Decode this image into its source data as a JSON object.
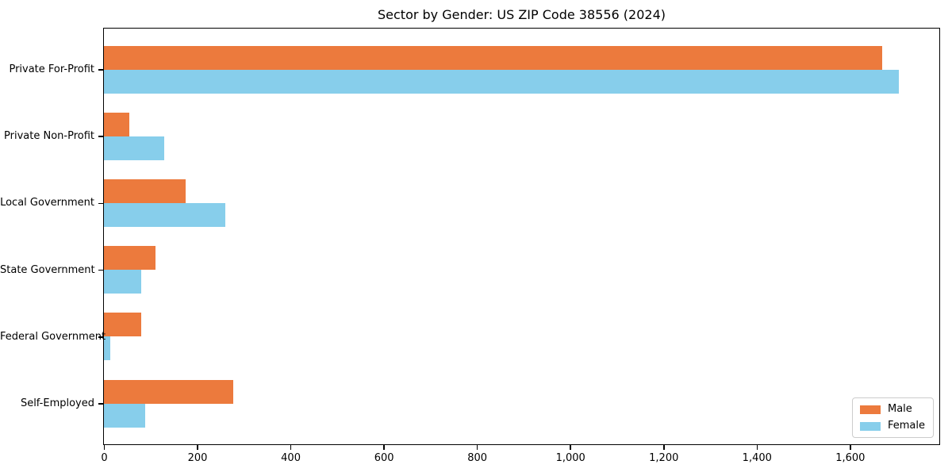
{
  "chart_data": {
    "type": "bar",
    "orientation": "horizontal",
    "title": "Sector by Gender: US ZIP Code 38556 (2024)",
    "categories": [
      "Private For-Profit",
      "Private Non-Profit",
      "Local Government",
      "State Government",
      "Federal Government",
      "Self-Employed"
    ],
    "series": [
      {
        "name": "Male",
        "color": "#EC7A3D",
        "values": [
          1670,
          55,
          175,
          110,
          80,
          278
        ]
      },
      {
        "name": "Female",
        "color": "#87CEEB",
        "values": [
          1705,
          130,
          260,
          80,
          13,
          88
        ]
      }
    ],
    "xlabel": "",
    "ylabel": "",
    "xlim": [
      0,
      1790
    ],
    "xticks": [
      0,
      200,
      400,
      600,
      800,
      1000,
      1200,
      1400,
      1600
    ],
    "xtick_labels": [
      "0",
      "200",
      "400",
      "600",
      "800",
      "1,000",
      "1,200",
      "1,400",
      "1,600"
    ],
    "grid": false,
    "background_color": "#ffffff",
    "spine_color": "#000000",
    "legend": {
      "position": "lower-right",
      "entries": [
        "Male",
        "Female"
      ]
    }
  }
}
